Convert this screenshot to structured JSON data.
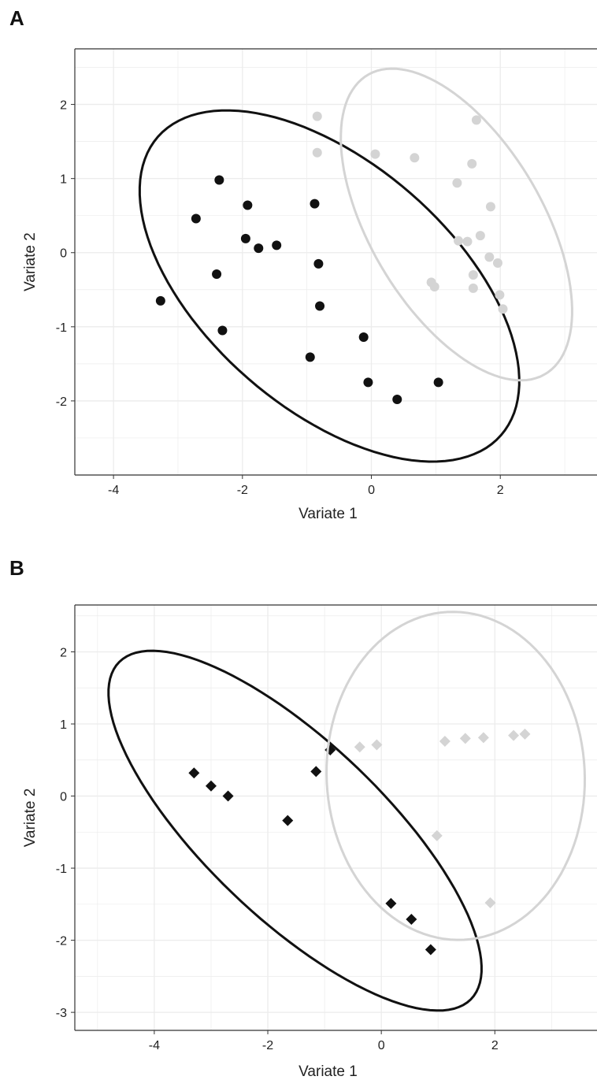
{
  "colors": {
    "group1": "#111111",
    "group2": "#d4d4d4",
    "grid": "#ececec",
    "axis": "#333333"
  },
  "chart_data": [
    {
      "panel": "A",
      "type": "scatter",
      "marker": "circle",
      "xlabel": "Variate 1",
      "ylabel": "Variate 2",
      "xlim": [
        -4.6,
        3.5
      ],
      "ylim": [
        -3.0,
        2.75
      ],
      "xticks": [
        -4,
        -2,
        0,
        2
      ],
      "yticks": [
        -2,
        -1,
        0,
        1,
        2
      ],
      "xtick_labels": [
        "-4",
        "-2",
        "0",
        "2"
      ],
      "ytick_labels": [
        "-2",
        "-1",
        "0",
        "1",
        "2"
      ],
      "grid": true,
      "series": [
        {
          "color": "#111111",
          "points": [
            [
              -2.36,
              0.98
            ],
            [
              -2.72,
              0.46
            ],
            [
              -1.92,
              0.64
            ],
            [
              -0.88,
              0.66
            ],
            [
              -1.95,
              0.19
            ],
            [
              -1.75,
              0.06
            ],
            [
              -1.47,
              0.1
            ],
            [
              -2.4,
              -0.29
            ],
            [
              -0.82,
              -0.15
            ],
            [
              -3.27,
              -0.65
            ],
            [
              -0.8,
              -0.72
            ],
            [
              -2.31,
              -1.05
            ],
            [
              -0.12,
              -1.14
            ],
            [
              -0.95,
              -1.41
            ],
            [
              -0.05,
              -1.75
            ],
            [
              0.4,
              -1.98
            ],
            [
              1.04,
              -1.75
            ]
          ],
          "ellipse": {
            "center": [
              -0.65,
              -0.45
            ],
            "semi_major": 3.35,
            "semi_minor": 1.75,
            "angle_deg": -34
          }
        },
        {
          "color": "#d4d4d4",
          "points": [
            [
              -0.84,
              1.84
            ],
            [
              1.63,
              1.79
            ],
            [
              -0.84,
              1.35
            ],
            [
              0.06,
              1.33
            ],
            [
              0.67,
              1.28
            ],
            [
              1.56,
              1.2
            ],
            [
              1.33,
              0.94
            ],
            [
              1.85,
              0.62
            ],
            [
              1.69,
              0.23
            ],
            [
              1.49,
              0.15
            ],
            [
              1.35,
              0.16
            ],
            [
              1.83,
              -0.06
            ],
            [
              1.96,
              -0.14
            ],
            [
              1.58,
              -0.3
            ],
            [
              0.93,
              -0.4
            ],
            [
              0.98,
              -0.46
            ],
            [
              1.58,
              -0.48
            ],
            [
              1.99,
              -0.57
            ],
            [
              2.04,
              -0.76
            ]
          ],
          "ellipse": {
            "center": [
              1.32,
              0.38
            ],
            "semi_major": 2.45,
            "semi_minor": 1.28,
            "angle_deg": -53
          }
        }
      ]
    },
    {
      "panel": "B",
      "type": "scatter",
      "marker": "diamond",
      "xlabel": "Variate 1",
      "ylabel": "Variate 2",
      "xlim": [
        -5.4,
        3.8
      ],
      "ylim": [
        -3.25,
        2.65
      ],
      "xticks": [
        -4,
        -2,
        0,
        2
      ],
      "yticks": [
        -3,
        -2,
        -1,
        0,
        1,
        2
      ],
      "xtick_labels": [
        "-4",
        "-2",
        "0",
        "2"
      ],
      "ytick_labels": [
        "-3",
        "-2",
        "-1",
        "0",
        "1",
        "2"
      ],
      "grid": true,
      "series": [
        {
          "color": "#111111",
          "points": [
            [
              -3.3,
              0.32
            ],
            [
              -3.0,
              0.14
            ],
            [
              -2.7,
              0.0
            ],
            [
              -1.65,
              -0.34
            ],
            [
              -1.15,
              0.34
            ],
            [
              -0.9,
              0.64
            ],
            [
              0.17,
              -1.49
            ],
            [
              0.53,
              -1.71
            ],
            [
              0.87,
              -2.13
            ]
          ],
          "ellipse": {
            "center": [
              -1.52,
              -0.48
            ],
            "semi_major": 3.9,
            "semi_minor": 1.35,
            "angle_deg": -35
          }
        },
        {
          "color": "#d4d4d4",
          "points": [
            [
              -0.38,
              0.68
            ],
            [
              -0.08,
              0.71
            ],
            [
              1.12,
              0.76
            ],
            [
              1.48,
              0.8
            ],
            [
              1.8,
              0.81
            ],
            [
              2.33,
              0.84
            ],
            [
              2.53,
              0.86
            ],
            [
              0.98,
              -0.55
            ],
            [
              1.92,
              -1.48
            ]
          ],
          "ellipse": {
            "center": [
              1.31,
              0.28
            ],
            "semi_major": 2.3,
            "semi_minor": 2.25,
            "angle_deg": -45
          }
        }
      ]
    }
  ]
}
